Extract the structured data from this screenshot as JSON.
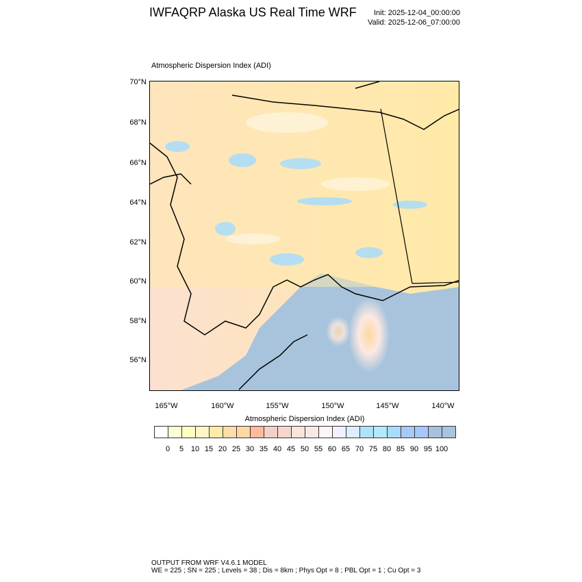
{
  "header": {
    "title": "IWFAQRP Alaska US Real Time WRF",
    "init": "Init: 2025-12-04_00:00:00",
    "valid": "Valid: 2025-12-06_07:00:00"
  },
  "map": {
    "subtitle": "Atmospheric Dispersion Index   (ADI)",
    "lat_labels": [
      "70°N",
      "68°N",
      "66°N",
      "64°N",
      "62°N",
      "60°N",
      "58°N",
      "56°N"
    ],
    "lon_labels": [
      "165°W",
      "160°W",
      "155°W",
      "150°W",
      "145°W",
      "140°W"
    ]
  },
  "colorbar": {
    "title": "Atmospheric Dispersion Index  (ADI)",
    "labels": [
      "0",
      "5",
      "10",
      "15",
      "20",
      "25",
      "30",
      "35",
      "40",
      "45",
      "50",
      "55",
      "60",
      "65",
      "70",
      "75",
      "80",
      "85",
      "90",
      "95",
      "100"
    ],
    "colors": [
      "#ffffff",
      "#fffdd8",
      "#ffffc0",
      "#fff6c8",
      "#ffeaa8",
      "#ffdcaa",
      "#ffd8a2",
      "#ffbba0",
      "#f6d0c8",
      "#f6d6ce",
      "#f8e4d8",
      "#fce8e2",
      "#fff4f4",
      "#eef2ff",
      "#dceeff",
      "#b0e2fc",
      "#b4e8fc",
      "#a8dcfc",
      "#a8c8f8",
      "#a8c8fc",
      "#a8c0e0",
      "#a8c4dc"
    ]
  },
  "footer": {
    "line1": "OUTPUT FROM WRF V4.6.1 MODEL",
    "line2": "WE = 225 ; SN = 225 ; Levels = 38 ; Dis = 8km ; Phys Opt = 8 ; PBL Opt = 1 ; Cu Opt = 3"
  }
}
